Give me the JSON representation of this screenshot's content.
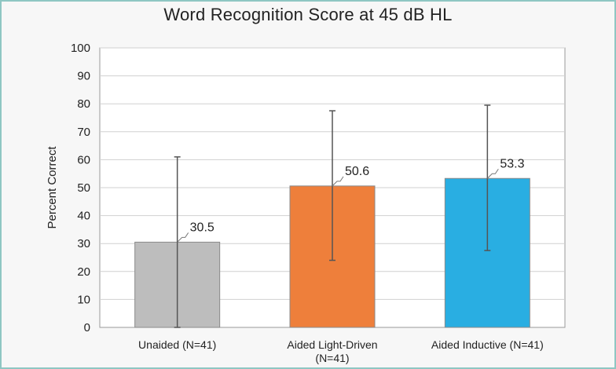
{
  "chart_data": {
    "type": "bar",
    "title": "Word Recognition Score at 45 dB HL",
    "ylabel": "Percent Correct",
    "xlabel": "",
    "ylim": [
      0,
      100
    ],
    "yticks": [
      0,
      10,
      20,
      30,
      40,
      50,
      60,
      70,
      80,
      90,
      100
    ],
    "grid": true,
    "categories": [
      [
        "Unaided (N=41)"
      ],
      [
        "Aided Light-Driven",
        "(N=41)"
      ],
      [
        "Aided Inductive (N=41)"
      ]
    ],
    "values": [
      30.5,
      50.6,
      53.3
    ],
    "data_labels": [
      "30.5",
      "50.6",
      "53.3"
    ],
    "error_bars": [
      {
        "low": 0,
        "high": 61
      },
      {
        "low": 24,
        "high": 77.5
      },
      {
        "low": 27.5,
        "high": 79.5
      }
    ],
    "colors": [
      "#bdbdbd",
      "#ee7f3b",
      "#29aee2"
    ]
  }
}
